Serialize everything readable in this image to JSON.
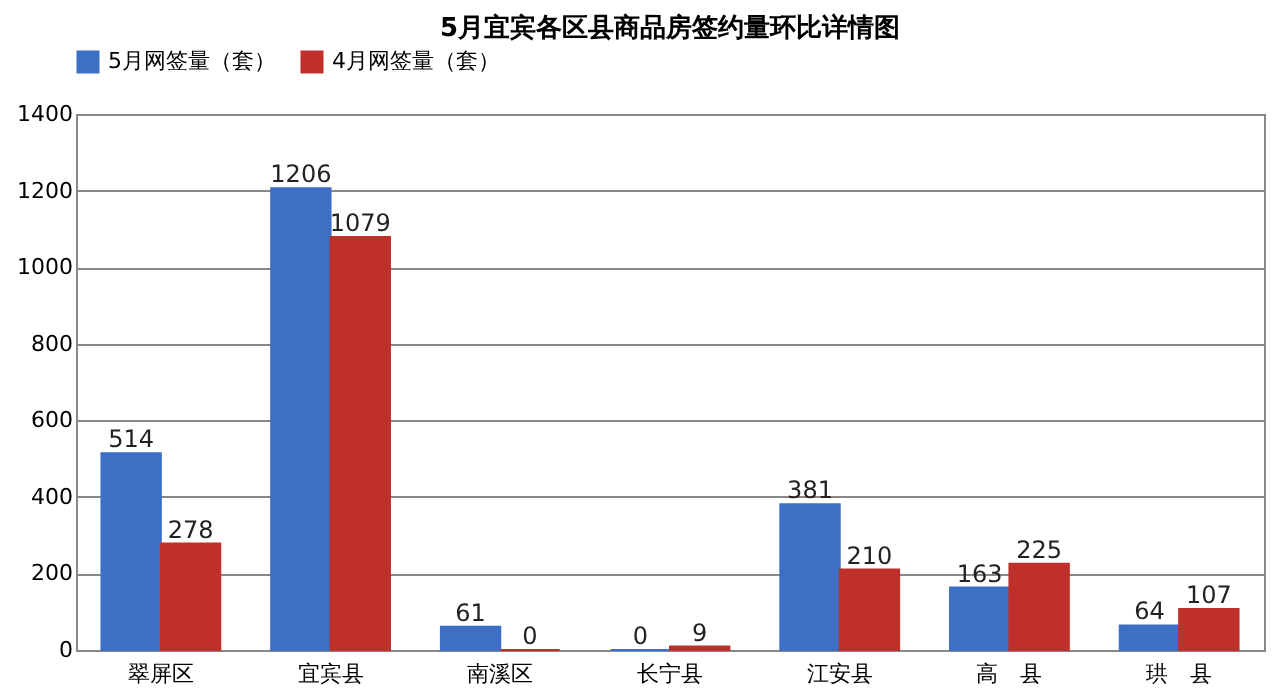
{
  "chart_data": {
    "type": "bar",
    "title": "5月宜宾各区县商品房签约量环比详情图",
    "categories": [
      "翠屏区",
      "宜宾县",
      "南溪区",
      "长宁县",
      "江安县",
      "高　县",
      "珙　县"
    ],
    "series": [
      {
        "name": "5月网签量（套）",
        "color": "#3d6fc4",
        "values": [
          514,
          1206,
          61,
          0,
          381,
          163,
          64
        ]
      },
      {
        "name": "4月网签量（套）",
        "color": "#c0302b",
        "values": [
          278,
          1079,
          0,
          9,
          210,
          225,
          107
        ]
      }
    ],
    "ylim": [
      0,
      1400
    ],
    "yticks": [
      0,
      200,
      400,
      600,
      800,
      1000,
      1200,
      1400
    ],
    "grid": "y",
    "legend": "top",
    "data_labels": true
  }
}
